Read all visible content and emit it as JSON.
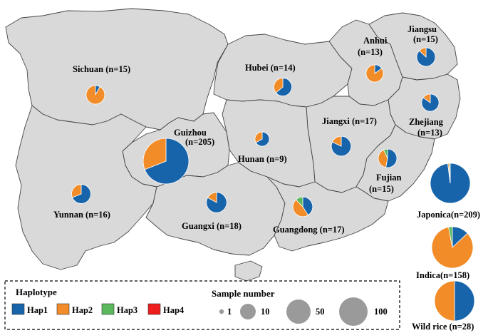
{
  "colors": {
    "land": "#d9d9d9",
    "border": "#444444",
    "Hap1": "#1764ab",
    "Hap2": "#f28c28",
    "Hap3": "#5cb85c",
    "Hap4": "#ee1c1c",
    "size_marker": "#9a9a9a"
  },
  "legend": {
    "haplotype_title": "Haplotype",
    "haplotypes": [
      "Hap1",
      "Hap2",
      "Hap3",
      "Hap4"
    ],
    "size_title": "Sample number",
    "sizes": [
      {
        "label": "1",
        "n": 1
      },
      {
        "label": "10",
        "n": 10
      },
      {
        "label": "50",
        "n": 50
      },
      {
        "label": "100",
        "n": 100
      }
    ]
  },
  "regions": [
    {
      "name": "Sichuan",
      "label": "Sichuan (n=15)",
      "n": 15,
      "hap": [
        0.08,
        0.92,
        0,
        0
      ]
    },
    {
      "name": "Hubei",
      "label": "Hubei (n=14)",
      "n": 14,
      "hap": [
        0.64,
        0.36,
        0,
        0
      ]
    },
    {
      "name": "Anhui",
      "label": "Anhui",
      "label2": "(n=13)",
      "n": 13,
      "hap": [
        0.15,
        0.85,
        0,
        0
      ]
    },
    {
      "name": "Jiangsu",
      "label": "Jiangsu",
      "label2": "(n=15)",
      "n": 15,
      "hap": [
        0.87,
        0.13,
        0,
        0
      ]
    },
    {
      "name": "Zhejiang",
      "label": "Zhejiang",
      "label2": "(n=13)",
      "n": 13,
      "hap": [
        0.85,
        0.15,
        0,
        0
      ]
    },
    {
      "name": "Guizhou",
      "label": "Guizhou",
      "label2": "(n=205)",
      "n": 205,
      "hap": [
        0.69,
        0.31,
        0,
        0
      ]
    },
    {
      "name": "Hunan",
      "label": "Hunan (n=9)",
      "n": 9,
      "hap": [
        0.67,
        0.33,
        0,
        0
      ]
    },
    {
      "name": "Jiangxi",
      "label": "Jiangxi (n=17)",
      "n": 17,
      "hap": [
        0.82,
        0.18,
        0,
        0
      ]
    },
    {
      "name": "Fujian",
      "label": "Fujian",
      "label2": "(n=15)",
      "n": 15,
      "hap": [
        0.53,
        0.4,
        0.07,
        0
      ]
    },
    {
      "name": "Yunnan",
      "label": "Yunnan (n=16)",
      "n": 16,
      "hap": [
        0.69,
        0.31,
        0,
        0
      ]
    },
    {
      "name": "Guangxi",
      "label": "Guangxi (n=18)",
      "n": 18,
      "hap": [
        0.83,
        0.17,
        0,
        0
      ]
    },
    {
      "name": "Guangdong",
      "label": "Guangdong (n=17)",
      "n": 17,
      "hap": [
        0.41,
        0.47,
        0.12,
        0
      ]
    }
  ],
  "groups": [
    {
      "name": "Japonica",
      "label": "Japonica(n=209)",
      "n": 209,
      "hap": [
        0.98,
        0.01,
        0.01,
        0
      ]
    },
    {
      "name": "Indica",
      "label": "Indica(n=158)",
      "n": 158,
      "hap": [
        0.13,
        0.84,
        0.03,
        0
      ]
    },
    {
      "name": "Wild rice",
      "label": "Wild rice (n=28)",
      "n": 28,
      "hap": [
        0.5,
        0.5,
        0,
        0
      ]
    }
  ]
}
